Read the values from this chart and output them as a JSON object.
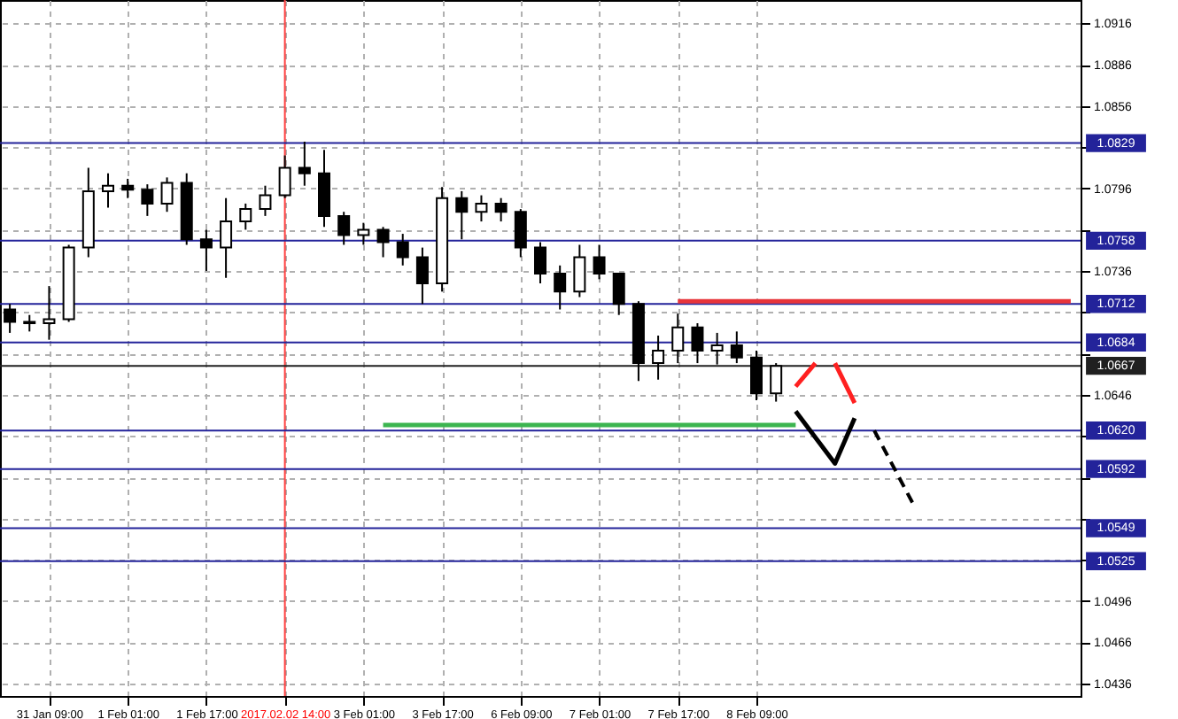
{
  "chart_data": {
    "type": "candlestick",
    "categories": [
      null,
      null,
      "31 Jan 09:00",
      null,
      null,
      null,
      "1 Feb 01:00",
      null,
      null,
      null,
      "1 Feb 17:00",
      null,
      null,
      null,
      "2017.02.02 14:00",
      null,
      null,
      null,
      "3 Feb 01:00",
      null,
      null,
      null,
      "3 Feb 17:00",
      null,
      null,
      null,
      "6 Feb 09:00",
      null,
      null,
      null,
      "7 Feb 01:00",
      null,
      null,
      null,
      "7 Feb 17:00",
      null,
      null,
      null,
      "8 Feb 09:00",
      null,
      null,
      null,
      null,
      null,
      null,
      null,
      null,
      null,
      null,
      null,
      null,
      null,
      null,
      null,
      null
    ],
    "ohlc": [
      [
        1.0708,
        1.0712,
        1.0691,
        1.0699
      ],
      [
        1.0699,
        1.0704,
        1.0692,
        1.0698
      ],
      [
        1.0698,
        1.0725,
        1.0686,
        1.0701
      ],
      [
        1.0701,
        1.0755,
        1.0699,
        1.0753
      ],
      [
        1.0753,
        1.0811,
        1.0746,
        1.0794
      ],
      [
        1.0794,
        1.0807,
        1.0782,
        1.0798
      ],
      [
        1.0798,
        1.0803,
        1.0789,
        1.0795
      ],
      [
        1.0795,
        1.0799,
        1.0776,
        1.0785
      ],
      [
        1.0785,
        1.0804,
        1.0779,
        1.08
      ],
      [
        1.08,
        1.0807,
        1.0755,
        1.0759
      ],
      [
        1.0759,
        1.0766,
        1.0736,
        1.0753
      ],
      [
        1.0753,
        1.0789,
        1.0731,
        1.0772
      ],
      [
        1.0772,
        1.0785,
        1.0766,
        1.0781
      ],
      [
        1.0781,
        1.0798,
        1.0776,
        1.0791
      ],
      [
        1.0791,
        1.082,
        1.0789,
        1.0811
      ],
      [
        1.0811,
        1.083,
        1.0798,
        1.0807
      ],
      [
        1.0807,
        1.0824,
        1.0768,
        1.0776
      ],
      [
        1.0776,
        1.0779,
        1.0755,
        1.0762
      ],
      [
        1.0762,
        1.0771,
        1.0755,
        1.0766
      ],
      [
        1.0766,
        1.0768,
        1.0746,
        1.0757
      ],
      [
        1.0757,
        1.0763,
        1.074,
        1.0746
      ],
      [
        1.0746,
        1.0753,
        1.0712,
        1.0727
      ],
      [
        1.0727,
        1.0797,
        1.0721,
        1.0789
      ],
      [
        1.0789,
        1.0794,
        1.0759,
        1.0779
      ],
      [
        1.0779,
        1.0791,
        1.0772,
        1.0785
      ],
      [
        1.0785,
        1.0789,
        1.0772,
        1.0779
      ],
      [
        1.0779,
        1.0781,
        1.0746,
        1.0753
      ],
      [
        1.0753,
        1.0757,
        1.0727,
        1.0734
      ],
      [
        1.0734,
        1.074,
        1.0708,
        1.0721
      ],
      [
        1.0721,
        1.0755,
        1.0717,
        1.0746
      ],
      [
        1.0746,
        1.0755,
        1.073,
        1.0734
      ],
      [
        1.0734,
        1.0734,
        1.0704,
        1.0712
      ],
      [
        1.0712,
        1.0714,
        1.0656,
        1.0669
      ],
      [
        1.0669,
        1.0689,
        1.0657,
        1.0678
      ],
      [
        1.0678,
        1.0705,
        1.0669,
        1.0695
      ],
      [
        1.0695,
        1.0698,
        1.0669,
        1.0678
      ],
      [
        1.0678,
        1.0691,
        1.0668,
        1.0682
      ],
      [
        1.0682,
        1.0692,
        1.0669,
        1.0673
      ],
      [
        1.0673,
        1.0678,
        1.0642,
        1.0647
      ],
      [
        1.0647,
        1.0669,
        1.0641,
        1.0667
      ],
      null,
      null,
      null,
      null,
      null,
      null,
      null,
      null,
      null,
      null,
      null,
      null,
      null,
      null,
      null
    ],
    "series": [
      {
        "type": "line",
        "color": "#e8343a",
        "values": [
          null,
          null,
          null,
          null,
          null,
          null,
          null,
          null,
          null,
          null,
          null,
          null,
          null,
          null,
          null,
          null,
          null,
          null,
          null,
          null,
          null,
          null,
          null,
          null,
          null,
          null,
          null,
          null,
          null,
          null,
          null,
          null,
          null,
          null,
          1.0714,
          1.0714,
          1.0714,
          1.0714,
          1.0714,
          1.0714,
          1.0714,
          1.0714,
          1.0714,
          1.0714,
          1.0714,
          1.0714,
          1.0714,
          1.0714,
          1.0714,
          1.0714,
          1.0714,
          1.0714,
          1.0714,
          1.0714,
          1.0714
        ]
      },
      {
        "type": "line",
        "color": "#3cb550",
        "values": [
          null,
          null,
          null,
          null,
          null,
          null,
          null,
          null,
          null,
          null,
          null,
          null,
          null,
          null,
          null,
          null,
          null,
          null,
          null,
          1.0624,
          1.0624,
          1.0624,
          1.0624,
          1.0624,
          1.0624,
          1.0624,
          1.0624,
          1.0624,
          1.0624,
          1.0624,
          1.0624,
          1.0624,
          1.0624,
          1.0624,
          1.0624,
          1.0624,
          1.0624,
          1.0624,
          1.0624,
          1.0624,
          1.0624,
          null,
          null,
          null,
          null,
          null,
          null,
          null,
          null,
          null,
          null,
          null,
          null,
          null,
          null
        ]
      },
      {
        "type": "line",
        "color": "#000000",
        "values": [
          null,
          null,
          null,
          null,
          null,
          null,
          null,
          null,
          null,
          null,
          null,
          null,
          null,
          null,
          null,
          null,
          null,
          null,
          null,
          null,
          null,
          null,
          null,
          null,
          null,
          null,
          null,
          null,
          null,
          null,
          null,
          null,
          null,
          null,
          null,
          null,
          null,
          null,
          null,
          null,
          1.0634,
          null,
          1.0596,
          1.0629,
          null,
          null,
          null,
          null,
          null,
          null,
          null,
          null,
          null,
          null,
          null
        ]
      },
      {
        "type": "line",
        "color": "#000000",
        "line_style": "dashed",
        "values": [
          null,
          null,
          null,
          null,
          null,
          null,
          null,
          null,
          null,
          null,
          null,
          null,
          null,
          null,
          null,
          null,
          null,
          null,
          null,
          null,
          null,
          null,
          null,
          null,
          null,
          null,
          null,
          null,
          null,
          null,
          null,
          null,
          null,
          null,
          null,
          null,
          null,
          null,
          null,
          null,
          null,
          null,
          null,
          null,
          1.062,
          null,
          1.0566,
          null,
          null,
          null,
          null,
          null,
          null,
          null,
          null
        ]
      },
      {
        "type": "line",
        "color": "#ff2020",
        "values": [
          null,
          null,
          null,
          null,
          null,
          null,
          null,
          null,
          null,
          null,
          null,
          null,
          null,
          null,
          null,
          null,
          null,
          null,
          null,
          null,
          null,
          null,
          null,
          null,
          null,
          null,
          null,
          null,
          null,
          null,
          null,
          null,
          null,
          null,
          null,
          null,
          null,
          null,
          null,
          null,
          1.0652,
          1.0669,
          null,
          null,
          null,
          null,
          null,
          null,
          null,
          null,
          null,
          null,
          null,
          null,
          null
        ]
      },
      {
        "type": "line",
        "color": "#ff2020",
        "values": [
          null,
          null,
          null,
          null,
          null,
          null,
          null,
          null,
          null,
          null,
          null,
          null,
          null,
          null,
          null,
          null,
          null,
          null,
          null,
          null,
          null,
          null,
          null,
          null,
          null,
          null,
          null,
          null,
          null,
          null,
          null,
          null,
          null,
          null,
          null,
          null,
          null,
          null,
          null,
          null,
          null,
          null,
          1.0669,
          1.064,
          null,
          null,
          null,
          null,
          null,
          null,
          null,
          null,
          null,
          null,
          null
        ]
      }
    ],
    "ylim": [
      1.0427,
      1.0933
    ],
    "yticks": [
      1.0436,
      1.0466,
      1.0496,
      {
        "value": 1.0526,
        "label": null
      },
      {
        "value": 1.0556,
        "label": null
      },
      {
        "value": 1.0586,
        "label": null
      },
      {
        "value": 1.0616,
        "label": null
      },
      1.0646,
      {
        "value": 1.0676,
        "label": null
      },
      {
        "value": 1.0706,
        "label": null
      },
      1.0736,
      {
        "value": 1.0766,
        "label": null
      },
      1.0796,
      {
        "value": 1.0826,
        "label": null
      },
      1.0856,
      1.0886,
      1.0916
    ],
    "ref_lines": [
      {
        "axis": "y",
        "value": 1.0829,
        "label": "1.0829",
        "color": "#23239a"
      },
      {
        "axis": "y",
        "value": 1.0758,
        "label": "1.0758",
        "color": "#23239a"
      },
      {
        "axis": "y",
        "value": 1.0712,
        "label": "1.0712",
        "color": "#23239a"
      },
      {
        "axis": "y",
        "value": 1.0684,
        "label": "1.0684",
        "color": "#23239a"
      },
      {
        "axis": "y",
        "value": 1.0667,
        "label": "1.0667",
        "color": "#202020"
      },
      {
        "axis": "y",
        "value": 1.062,
        "label": "1.0620",
        "color": "#23239a"
      },
      {
        "axis": "y",
        "value": 1.0592,
        "label": "1.0592",
        "color": "#23239a"
      },
      {
        "axis": "y",
        "value": 1.0549,
        "label": "1.0549",
        "color": "#23239a"
      },
      {
        "axis": "y",
        "value": 1.0525,
        "label": "1.0525",
        "color": "#23239a"
      },
      {
        "axis": "x",
        "value": "2017.02.02 14:00",
        "color": "#ff4040"
      }
    ],
    "grid": true
  }
}
